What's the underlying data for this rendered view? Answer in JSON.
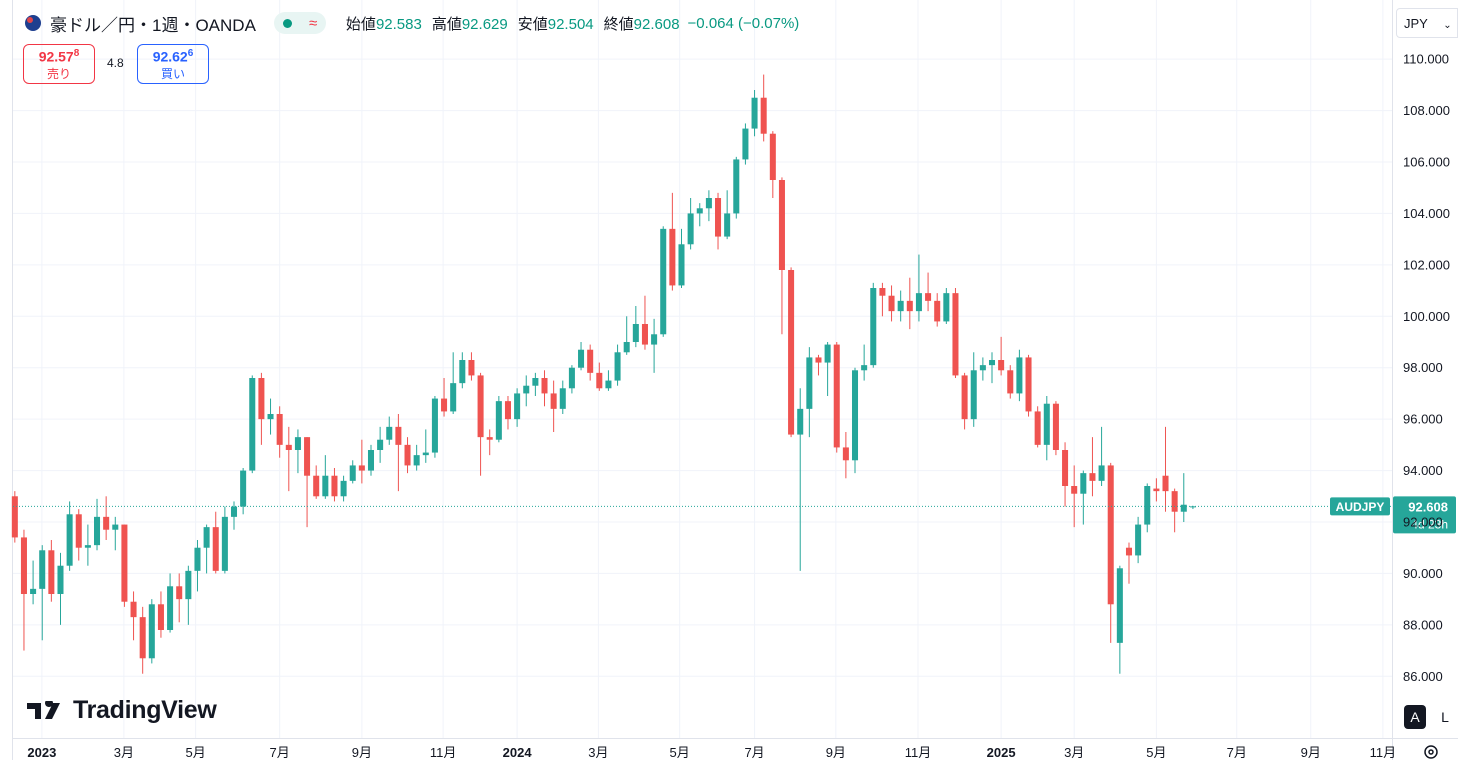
{
  "header": {
    "symbol": "豪ドル／円・1週・OANDA",
    "approx": "≈",
    "labels": [
      "始値",
      "高値",
      "安値",
      "終値"
    ],
    "change": "−0.064 (−0.07%)",
    "currency": "JPY"
  },
  "trade": {
    "sell_price": "92.57",
    "sell_pip": "8",
    "sell_label": "売り",
    "spread": "4.8",
    "buy_price": "92.62",
    "buy_pip": "6",
    "buy_label": "買い"
  },
  "price_label": {
    "symbol": "AUDJPY",
    "countdown": "4d 23h"
  },
  "buttons": [
    "A",
    "L"
  ],
  "logo": "TradingView",
  "chart_data": {
    "type": "candlestick",
    "up_color": "#26a69a",
    "down_color": "#ef5350",
    "grid": true,
    "open": [
      93.0,
      91.4,
      89.2,
      89.4,
      90.9,
      89.2,
      90.3,
      92.3,
      91.0,
      91.1,
      92.2,
      91.7,
      91.9,
      88.9,
      88.3,
      86.7,
      88.8,
      87.8,
      89.5,
      89.0,
      90.1,
      91.0,
      91.8,
      90.1,
      92.2,
      92.6,
      94.0,
      97.6,
      96.0,
      96.2,
      95.0,
      94.8,
      95.3,
      93.8,
      93.0,
      93.8,
      93.0,
      93.6,
      94.2,
      94.0,
      94.8,
      95.2,
      95.7,
      95.0,
      94.2,
      94.6,
      94.7,
      96.8,
      96.3,
      97.4,
      98.3,
      97.7,
      95.3,
      95.2,
      96.7,
      96.0,
      97.0,
      97.3,
      97.6,
      97.0,
      96.4,
      97.2,
      98.0,
      98.7,
      97.8,
      97.2,
      97.5,
      98.6,
      99.0,
      99.7,
      98.9,
      99.3,
      103.4,
      101.2,
      102.8,
      104.0,
      104.2,
      104.6,
      103.1,
      104.0,
      106.1,
      107.3,
      108.5,
      107.1,
      105.3,
      101.8,
      95.4,
      96.4,
      98.4,
      98.2,
      98.9,
      94.9,
      94.4,
      97.9,
      98.1,
      101.1,
      100.8,
      100.2,
      100.6,
      100.2,
      100.9,
      100.6,
      99.8,
      100.9,
      97.7,
      96.0,
      97.9,
      98.1,
      98.3,
      97.9,
      97.0,
      98.4,
      96.3,
      95.0,
      96.6,
      94.8,
      93.4,
      93.1,
      93.9,
      93.6,
      94.2,
      87.3,
      91.0,
      90.7,
      91.9,
      93.3,
      93.8,
      93.2,
      92.4,
      92.583
    ],
    "high": [
      93.2,
      91.7,
      90.5,
      91.1,
      91.3,
      90.8,
      92.8,
      92.5,
      91.9,
      92.9,
      93.0,
      92.2,
      91.9,
      89.3,
      88.7,
      89.0,
      89.3,
      90.0,
      90.0,
      90.3,
      91.3,
      91.9,
      92.4,
      92.6,
      92.8,
      94.1,
      97.7,
      97.8,
      96.8,
      96.5,
      95.7,
      95.6,
      95.3,
      94.2,
      94.6,
      94.1,
      93.8,
      94.4,
      95.2,
      95.0,
      95.7,
      96.1,
      96.2,
      95.3,
      95.0,
      95.6,
      96.9,
      97.6,
      98.6,
      98.6,
      98.6,
      97.8,
      95.6,
      96.9,
      96.9,
      97.2,
      97.7,
      97.8,
      97.9,
      97.5,
      97.5,
      98.1,
      99.0,
      98.9,
      98.2,
      97.9,
      98.9,
      100.0,
      100.4,
      100.8,
      99.9,
      103.5,
      104.8,
      103.4,
      104.6,
      104.4,
      104.9,
      104.8,
      104.9,
      106.2,
      107.5,
      108.8,
      109.4,
      107.2,
      105.4,
      101.9,
      97.2,
      98.8,
      98.5,
      99.0,
      99.0,
      95.5,
      98.0,
      98.9,
      101.3,
      101.3,
      101.2,
      101.0,
      101.5,
      102.4,
      101.7,
      100.9,
      101.1,
      101.1,
      97.8,
      98.6,
      98.4,
      98.6,
      99.2,
      98.1,
      98.7,
      98.5,
      96.5,
      96.9,
      96.7,
      95.1,
      94.2,
      94.0,
      95.3,
      95.7,
      94.3,
      90.3,
      91.2,
      92.2,
      93.5,
      93.7,
      95.7,
      93.3,
      93.9,
      92.629
    ],
    "low": [
      91.2,
      87.0,
      88.8,
      87.4,
      88.9,
      88.0,
      90.1,
      90.5,
      90.3,
      90.9,
      91.3,
      90.9,
      88.7,
      87.4,
      86.1,
      86.5,
      87.5,
      87.7,
      88.1,
      88.0,
      89.3,
      90.0,
      90.0,
      90.0,
      91.7,
      92.3,
      93.9,
      95.0,
      95.4,
      94.5,
      93.2,
      93.9,
      91.8,
      92.9,
      92.9,
      92.8,
      92.8,
      93.5,
      93.5,
      93.8,
      94.3,
      95.0,
      93.2,
      93.9,
      94.0,
      94.3,
      94.5,
      96.1,
      96.2,
      97.2,
      97.5,
      93.8,
      94.6,
      95.1,
      95.6,
      95.7,
      96.5,
      96.9,
      96.5,
      95.5,
      96.2,
      97.0,
      97.9,
      97.5,
      97.1,
      97.1,
      97.3,
      98.5,
      98.8,
      98.7,
      97.8,
      99.2,
      101.0,
      101.1,
      102.6,
      103.5,
      103.7,
      102.6,
      103.0,
      103.8,
      105.9,
      107.0,
      106.8,
      104.6,
      99.3,
      95.3,
      90.1,
      95.3,
      97.7,
      96.9,
      94.7,
      93.7,
      93.9,
      97.5,
      98.0,
      100.0,
      99.8,
      99.8,
      99.5,
      99.8,
      100.2,
      99.6,
      99.7,
      97.6,
      95.6,
      95.7,
      97.5,
      97.4,
      97.7,
      96.8,
      96.7,
      96.1,
      94.9,
      94.4,
      94.6,
      92.6,
      91.8,
      91.9,
      93.0,
      93.4,
      87.3,
      86.1,
      89.6,
      90.4,
      91.6,
      92.8,
      92.4,
      91.6,
      92.0,
      92.504
    ],
    "close": [
      91.4,
      89.2,
      89.4,
      90.9,
      89.2,
      90.3,
      92.3,
      91.0,
      91.1,
      92.2,
      91.7,
      91.9,
      88.9,
      88.3,
      86.7,
      88.8,
      87.8,
      89.5,
      89.0,
      90.1,
      91.0,
      91.8,
      90.1,
      92.2,
      92.6,
      94.0,
      97.6,
      96.0,
      96.2,
      95.0,
      94.8,
      95.3,
      93.8,
      93.0,
      93.8,
      93.0,
      93.6,
      94.2,
      94.0,
      94.8,
      95.2,
      95.7,
      95.0,
      94.2,
      94.6,
      94.7,
      96.8,
      96.3,
      97.4,
      98.3,
      97.7,
      95.3,
      95.2,
      96.7,
      96.0,
      97.0,
      97.3,
      97.6,
      97.0,
      96.4,
      97.2,
      98.0,
      98.7,
      97.8,
      97.2,
      97.5,
      98.6,
      99.0,
      99.7,
      98.9,
      99.3,
      103.4,
      101.2,
      102.8,
      104.0,
      104.2,
      104.6,
      103.1,
      104.0,
      106.1,
      107.3,
      108.5,
      107.1,
      105.3,
      101.8,
      95.4,
      96.4,
      98.4,
      98.2,
      98.9,
      94.9,
      94.4,
      97.9,
      98.1,
      101.1,
      100.8,
      100.2,
      100.6,
      100.2,
      100.9,
      100.6,
      99.8,
      100.9,
      97.7,
      96.0,
      97.9,
      98.1,
      98.3,
      97.9,
      97.0,
      98.4,
      96.3,
      95.0,
      96.6,
      94.8,
      93.4,
      93.1,
      93.9,
      93.6,
      94.2,
      88.8,
      90.2,
      90.7,
      91.9,
      93.4,
      93.2,
      93.2,
      92.4,
      92.672,
      92.608
    ],
    "xlim": [
      -0.2,
      150.8
    ],
    "xticks": [
      {
        "value": 2.96,
        "label": "2023"
      },
      {
        "value": 11.94,
        "label": "3月"
      },
      {
        "value": 19.8,
        "label": "5月"
      },
      {
        "value": 29.0,
        "label": "7月"
      },
      {
        "value": 38.0,
        "label": "9月"
      },
      {
        "value": 46.9,
        "label": "11月"
      },
      {
        "value": 55.0,
        "label": "2024"
      },
      {
        "value": 63.9,
        "label": "3月"
      },
      {
        "value": 72.8,
        "label": "5月"
      },
      {
        "value": 81.0,
        "label": "7月"
      },
      {
        "value": 89.9,
        "label": "9月"
      },
      {
        "value": 98.9,
        "label": "11月"
      },
      {
        "value": 108.0,
        "label": "2025"
      },
      {
        "value": 116.0,
        "label": "3月"
      },
      {
        "value": 125.0,
        "label": "5月"
      },
      {
        "value": 133.8,
        "label": "7月"
      },
      {
        "value": 141.9,
        "label": "9月"
      },
      {
        "value": 149.8,
        "label": "11月"
      }
    ],
    "ylim": [
      83.6,
      112.3
    ],
    "yticks": [
      {
        "value": 86,
        "label": "86.000"
      },
      {
        "value": 88,
        "label": "88.000"
      },
      {
        "value": 90,
        "label": "90.000"
      },
      {
        "value": 92,
        "label": "92.000"
      },
      {
        "value": 94,
        "label": "94.000"
      },
      {
        "value": 96,
        "label": "96.000"
      },
      {
        "value": 98,
        "label": "98.000"
      },
      {
        "value": 100,
        "label": "100.000"
      },
      {
        "value": 102,
        "label": "102.000"
      },
      {
        "value": 104,
        "label": "104.000"
      },
      {
        "value": 106,
        "label": "106.000"
      },
      {
        "value": 108,
        "label": "108.000"
      },
      {
        "value": 110,
        "label": "110.000"
      }
    ]
  }
}
